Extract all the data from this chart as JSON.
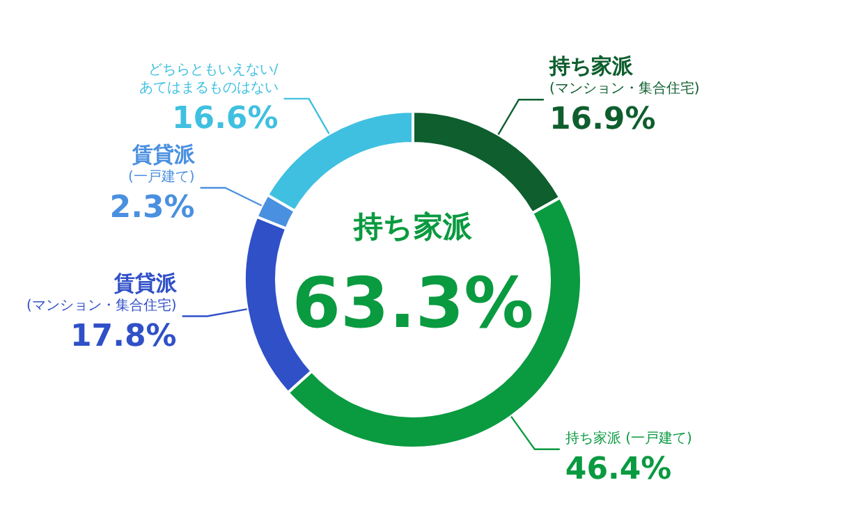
{
  "chart_data": {
    "type": "donut",
    "categories": [
      "持ち家派\n(マンション・集合住宅)",
      "持ち家派 (一戸建て)",
      "賃貸派\n(マンション・集合住宅)",
      "賃貸派\n(一戸建て)",
      "どちらともいえない/\nあてはまるものはない"
    ],
    "values": [
      16.9,
      46.4,
      17.8,
      2.3,
      16.6
    ],
    "colors": [
      "#0e5e2e",
      "#0a9a40",
      "#3050c8",
      "#4a90e0",
      "#40c0e0"
    ],
    "value_labels": [
      "16.9%",
      "46.4%",
      "17.8%",
      "2.3%",
      "16.6%"
    ],
    "annotations": [
      "持ち家派",
      "63.3%"
    ]
  }
}
